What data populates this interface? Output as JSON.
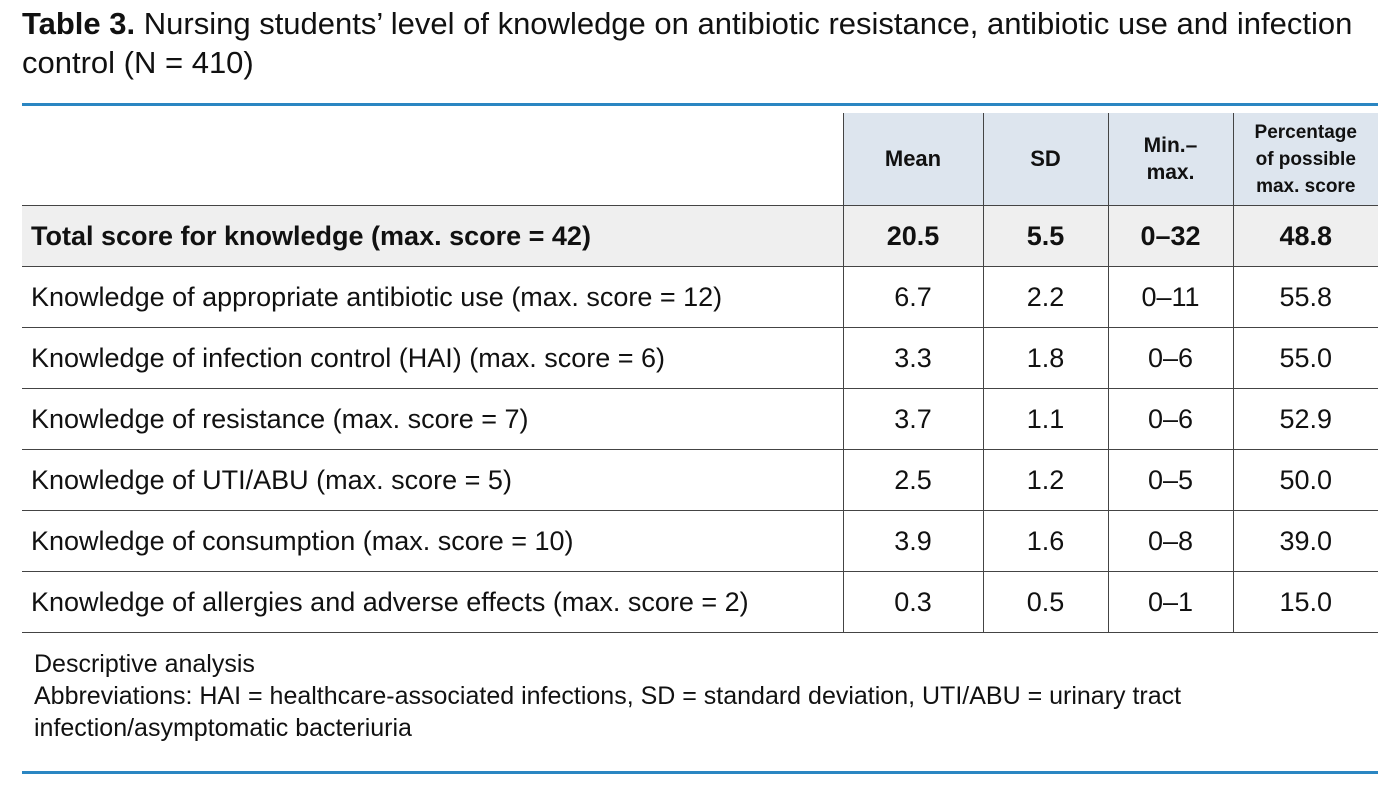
{
  "title": {
    "label": "Table 3.",
    "text": "Nursing students’ level of knowledge on antibiotic resistance, antibiotic use and infection control (N = 410)"
  },
  "table": {
    "columns": [
      "Mean",
      "SD",
      "Min.–max.",
      "Percentage of possible max. score"
    ],
    "header_lines": {
      "min_max": [
        "Min.–",
        "max."
      ],
      "percentage": [
        "Percentage",
        "of possible",
        "max. score"
      ]
    },
    "total_row": {
      "label": "Total score for knowledge (max. score = 42)",
      "mean": "20.5",
      "sd": "5.5",
      "min_max": "0–32",
      "percentage": "48.8"
    },
    "rows": [
      {
        "label": "Knowledge of appropriate antibiotic use (max. score = 12)",
        "mean": "6.7",
        "sd": "2.2",
        "min_max": "0–11",
        "percentage": "55.8"
      },
      {
        "label": "Knowledge of infection control (HAI) (max. score = 6)",
        "mean": "3.3",
        "sd": "1.8",
        "min_max": "0–6",
        "percentage": "55.0"
      },
      {
        "label": "Knowledge of resistance (max. score = 7)",
        "mean": "3.7",
        "sd": "1.1",
        "min_max": "0–6",
        "percentage": "52.9"
      },
      {
        "label": "Knowledge of UTI/ABU (max. score = 5)",
        "mean": "2.5",
        "sd": "1.2",
        "min_max": "0–5",
        "percentage": "50.0"
      },
      {
        "label": "Knowledge of consumption (max. score = 10)",
        "mean": "3.9",
        "sd": "1.6",
        "min_max": "0–8",
        "percentage": "39.0"
      },
      {
        "label": "Knowledge of allergies and adverse effects (max. score = 2)",
        "mean": "0.3",
        "sd": "0.5",
        "min_max": "0–1",
        "percentage": "15.0"
      }
    ]
  },
  "notes": {
    "analysis": "Descriptive analysis",
    "abbreviations": "Abbreviations: HAI = healthcare-associated infections, SD = standard deviation, UTI/ABU = urinary tract infection/asymptomatic bacteriuria"
  },
  "colors": {
    "rule": "#2a86c2",
    "header_fill": "#dde5ee",
    "total_fill": "#efefef"
  }
}
